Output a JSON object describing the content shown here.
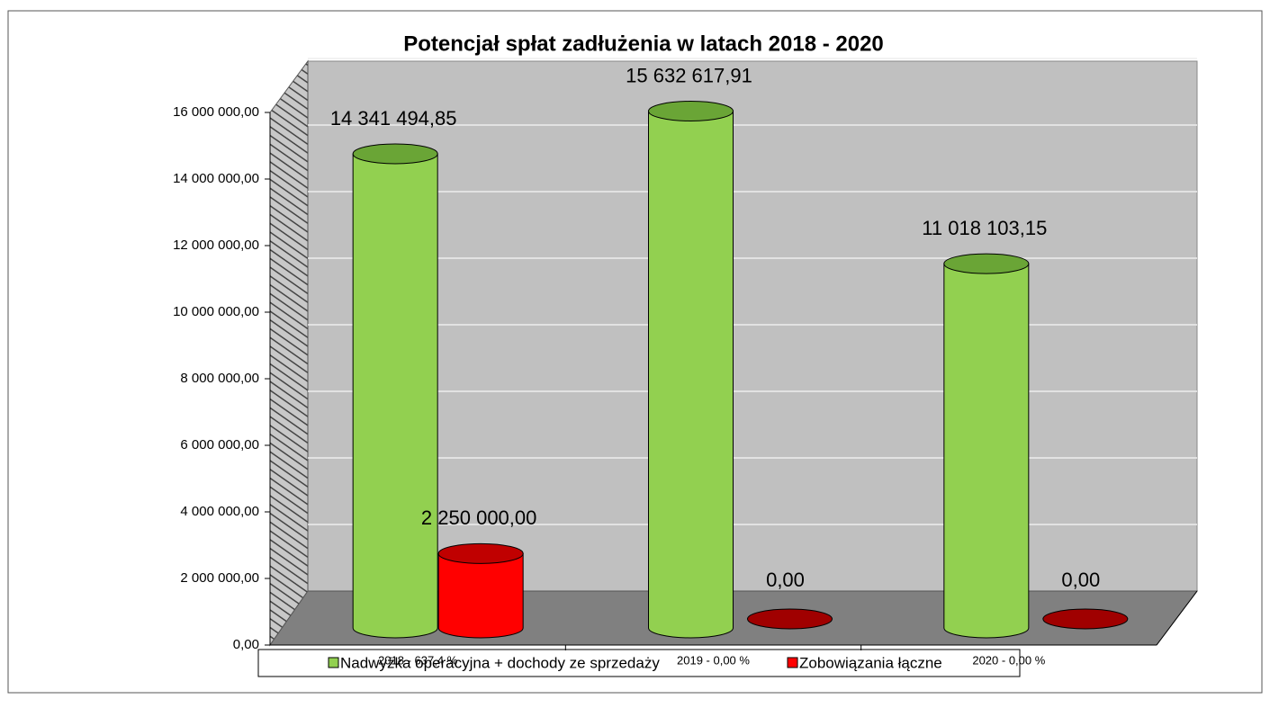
{
  "chart_data": {
    "type": "bar3d",
    "title": "Potencjał spłat zadłużenia w latach 2018 - 2020",
    "categories": [
      "2018 -  637,4 %",
      "2019 -  0,00 %",
      "2020 -  0,00 %"
    ],
    "series": [
      {
        "name": "Nadwyżka operacyjna + dochody ze sprzedaży",
        "color": "#92d050",
        "values": [
          14341494.85,
          15632617.91,
          11018103.15
        ],
        "value_labels": [
          "14 341 494,85",
          "15 632 617,91",
          "11 018 103,15"
        ]
      },
      {
        "name": "Zobowiązania łączne",
        "color": "#ff0000",
        "values": [
          2250000,
          0,
          0
        ],
        "value_labels": [
          "2 250 000,00",
          "0,00",
          "0,00"
        ]
      }
    ],
    "ylim": [
      0,
      16000000
    ],
    "yticks": [
      {
        "value": 0,
        "label": "0,00"
      },
      {
        "value": 2000000,
        "label": "2 000 000,00"
      },
      {
        "value": 4000000,
        "label": "4 000 000,00"
      },
      {
        "value": 6000000,
        "label": "6 000 000,00"
      },
      {
        "value": 8000000,
        "label": "8 000 000,00"
      },
      {
        "value": 10000000,
        "label": "10 000 000,00"
      },
      {
        "value": 12000000,
        "label": "12 000 000,00"
      },
      {
        "value": 14000000,
        "label": "14 000 000,00"
      },
      {
        "value": 16000000,
        "label": "16 000 000,00"
      }
    ],
    "grid": true,
    "legend": "bottom"
  }
}
